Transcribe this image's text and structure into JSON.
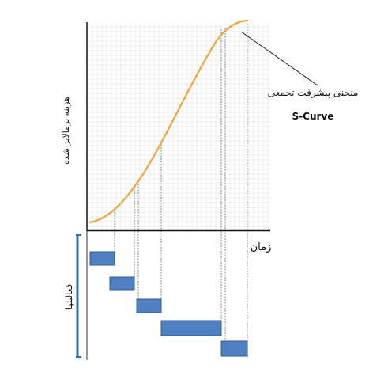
{
  "diagram": {
    "y_axis_label": "هزینه نرمالایز شده",
    "x_axis_label": "زمان",
    "curve_annotation": "منحنی پیشرفت تجمعی",
    "curve_name": "S-Curve",
    "activities_label": "فعالیتها",
    "activities_count": 5
  },
  "colors": {
    "curve": "#f4a23c",
    "axis": "#111111",
    "activity_fill": "#4f7fc0",
    "activity_stroke": "#2f5b93",
    "bracket": "#2f6db6",
    "guide": "#666666",
    "grid": "#dadada"
  }
}
